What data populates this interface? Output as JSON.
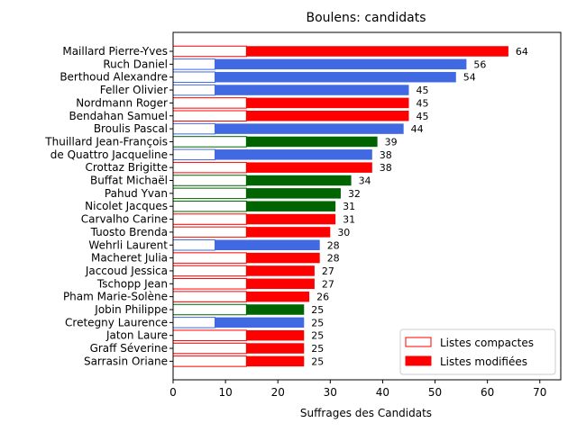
{
  "chart_data": {
    "type": "bar",
    "orientation": "horizontal",
    "stacked": true,
    "title": "Boulens: candidats",
    "xlabel": "Suffrages des Candidats",
    "ylabel": "",
    "xlim": [
      0,
      74
    ],
    "xticks": [
      0,
      10,
      20,
      30,
      40,
      50,
      60,
      70
    ],
    "legend": {
      "placement": "lower-right",
      "entries": [
        {
          "name": "Listes compactes",
          "style": "outline"
        },
        {
          "name": "Listes modifiées",
          "style": "filled"
        }
      ]
    },
    "party_colors": {
      "red": "#ff0000",
      "blue": "#4169e1",
      "green": "#006400"
    },
    "candidates": [
      {
        "name": "Maillard Pierre-Yves",
        "total": 64,
        "compact": 14,
        "color": "#ff0000"
      },
      {
        "name": "Ruch Daniel",
        "total": 56,
        "compact": 8,
        "color": "#4169e1"
      },
      {
        "name": "Berthoud Alexandre",
        "total": 54,
        "compact": 8,
        "color": "#4169e1"
      },
      {
        "name": "Feller Olivier",
        "total": 45,
        "compact": 8,
        "color": "#4169e1"
      },
      {
        "name": "Nordmann Roger",
        "total": 45,
        "compact": 14,
        "color": "#ff0000"
      },
      {
        "name": "Bendahan Samuel",
        "total": 45,
        "compact": 14,
        "color": "#ff0000"
      },
      {
        "name": "Broulis Pascal",
        "total": 44,
        "compact": 8,
        "color": "#4169e1"
      },
      {
        "name": "Thuillard Jean-François",
        "total": 39,
        "compact": 14,
        "color": "#006400"
      },
      {
        "name": "de Quattro Jacqueline",
        "total": 38,
        "compact": 8,
        "color": "#4169e1"
      },
      {
        "name": "Crottaz Brigitte",
        "total": 38,
        "compact": 14,
        "color": "#ff0000"
      },
      {
        "name": "Buffat Michaël",
        "total": 34,
        "compact": 14,
        "color": "#006400"
      },
      {
        "name": "Pahud Yvan",
        "total": 32,
        "compact": 14,
        "color": "#006400"
      },
      {
        "name": "Nicolet Jacques",
        "total": 31,
        "compact": 14,
        "color": "#006400"
      },
      {
        "name": "Carvalho Carine",
        "total": 31,
        "compact": 14,
        "color": "#ff0000"
      },
      {
        "name": "Tuosto Brenda",
        "total": 30,
        "compact": 14,
        "color": "#ff0000"
      },
      {
        "name": "Wehrli Laurent",
        "total": 28,
        "compact": 8,
        "color": "#4169e1"
      },
      {
        "name": "Macheret Julia",
        "total": 28,
        "compact": 14,
        "color": "#ff0000"
      },
      {
        "name": "Jaccoud Jessica",
        "total": 27,
        "compact": 14,
        "color": "#ff0000"
      },
      {
        "name": "Tschopp Jean",
        "total": 27,
        "compact": 14,
        "color": "#ff0000"
      },
      {
        "name": "Pham Marie-Solène",
        "total": 26,
        "compact": 14,
        "color": "#ff0000"
      },
      {
        "name": "Jobin Philippe",
        "total": 25,
        "compact": 14,
        "color": "#006400"
      },
      {
        "name": "Cretegny Laurence",
        "total": 25,
        "compact": 8,
        "color": "#4169e1"
      },
      {
        "name": "Jaton Laure",
        "total": 25,
        "compact": 14,
        "color": "#ff0000"
      },
      {
        "name": "Graff Séverine",
        "total": 25,
        "compact": 14,
        "color": "#ff0000"
      },
      {
        "name": "Sarrasin Oriane",
        "total": 25,
        "compact": 14,
        "color": "#ff0000"
      }
    ]
  }
}
